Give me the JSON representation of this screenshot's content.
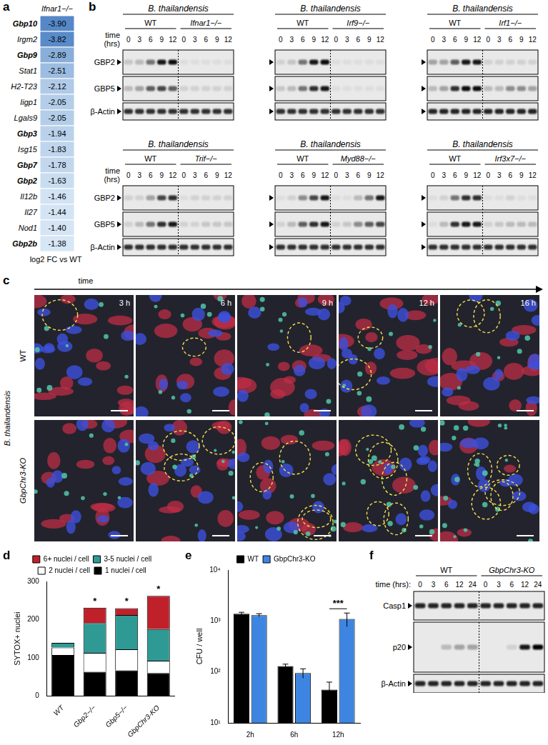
{
  "panel_a": {
    "letter": "a",
    "header": "Ifnar1−/−",
    "genes": [
      {
        "name": "Gbp10",
        "value": -3.9,
        "label": "-3.90",
        "bold": true
      },
      {
        "name": "Irgm2",
        "value": -3.82,
        "label": "-3.82",
        "bold": false
      },
      {
        "name": "Gbp9",
        "value": -2.89,
        "label": "-2.89",
        "bold": true
      },
      {
        "name": "Stat1",
        "value": -2.51,
        "label": "-2.51",
        "bold": false
      },
      {
        "name": "H2-T23",
        "value": -2.12,
        "label": "-2.12",
        "bold": false
      },
      {
        "name": "Iigp1",
        "value": -2.05,
        "label": "-2.05",
        "bold": false
      },
      {
        "name": "Lgals9",
        "value": -2.05,
        "label": "-2.05",
        "bold": false
      },
      {
        "name": "Gbp3",
        "value": -1.94,
        "label": "-1.94",
        "bold": true
      },
      {
        "name": "Isg15",
        "value": -1.83,
        "label": "-1.83",
        "bold": false
      },
      {
        "name": "Gbp7",
        "value": -1.78,
        "label": "-1.78",
        "bold": true
      },
      {
        "name": "Gbp2",
        "value": -1.63,
        "label": "-1.63",
        "bold": true
      },
      {
        "name": "Il12b",
        "value": -1.46,
        "label": "-1.46",
        "bold": false
      },
      {
        "name": "Il27",
        "value": -1.44,
        "label": "-1.44",
        "bold": false
      },
      {
        "name": "Nod1",
        "value": -1.4,
        "label": "-1.40",
        "bold": false
      },
      {
        "name": "Gbp2b",
        "value": -1.38,
        "label": "-1.38",
        "bold": true
      }
    ],
    "footer": "log2 FC vs WT"
  },
  "panel_b": {
    "letter": "b",
    "time_label": [
      "time",
      "(hrs)"
    ],
    "row_labels": [
      "GBP2",
      "GBP5",
      "β-Actin"
    ],
    "blots": [
      {
        "pathogen": "B. thailandensis",
        "groups": [
          "WT",
          "Ifnar1−/−"
        ],
        "times": [
          0,
          3,
          6,
          9,
          12
        ],
        "bands": [
          [
            0.15,
            0.2,
            0.5,
            0.9,
            0.95,
            0.05,
            0.05,
            0.05,
            0.05,
            0.05
          ],
          [
            0.2,
            0.3,
            0.6,
            0.7,
            0.6,
            0.1,
            0.1,
            0.1,
            0.1,
            0.1
          ],
          [
            0.8,
            0.8,
            0.8,
            0.8,
            0.8,
            0.8,
            0.8,
            0.8,
            0.8,
            0.8
          ]
        ]
      },
      {
        "pathogen": "B. thailandensis",
        "groups": [
          "WT",
          "Irf9−/−"
        ],
        "times": [
          0,
          3,
          6,
          9,
          12
        ],
        "bands": [
          [
            0.1,
            0.15,
            0.5,
            0.9,
            0.95,
            0.05,
            0.05,
            0.05,
            0.05,
            0.05
          ],
          [
            0.15,
            0.2,
            0.5,
            0.8,
            0.9,
            0.05,
            0.05,
            0.05,
            0.05,
            0.05
          ],
          [
            0.8,
            0.8,
            0.8,
            0.8,
            0.8,
            0.8,
            0.8,
            0.8,
            0.8,
            0.8
          ]
        ]
      },
      {
        "pathogen": "B. thailandensis",
        "groups": [
          "WT",
          "Irf1−/−"
        ],
        "times": [
          0,
          3,
          6,
          9,
          12
        ],
        "bands": [
          [
            0.3,
            0.3,
            0.6,
            0.9,
            0.9,
            0.1,
            0.1,
            0.1,
            0.1,
            0.1
          ],
          [
            0.2,
            0.3,
            0.8,
            0.95,
            0.95,
            0.2,
            0.2,
            0.4,
            0.4,
            0.3
          ],
          [
            0.85,
            0.85,
            0.85,
            0.85,
            0.85,
            0.85,
            0.85,
            0.85,
            0.85,
            0.85
          ]
        ]
      },
      {
        "pathogen": "B. thailandensis",
        "groups": [
          "WT",
          "Trif−/−"
        ],
        "times": [
          0,
          3,
          6,
          9,
          12
        ],
        "bands": [
          [
            0.1,
            0.1,
            0.3,
            0.7,
            0.8,
            0.05,
            0.1,
            0.1,
            0.1,
            0.1
          ],
          [
            0.1,
            0.2,
            0.5,
            0.8,
            0.9,
            0.1,
            0.1,
            0.15,
            0.15,
            0.15
          ],
          [
            0.8,
            0.8,
            0.8,
            0.8,
            0.8,
            0.8,
            0.8,
            0.8,
            0.8,
            0.8
          ]
        ]
      },
      {
        "pathogen": "B. thailandensis",
        "groups": [
          "WT",
          "Myd88−/−"
        ],
        "times": [
          0,
          3,
          6,
          9,
          12
        ],
        "bands": [
          [
            0.05,
            0.1,
            0.4,
            0.7,
            0.9,
            0.05,
            0.05,
            0.2,
            0.5,
            0.9
          ],
          [
            0.1,
            0.2,
            0.6,
            0.8,
            0.9,
            0.1,
            0.15,
            0.4,
            0.6,
            0.7
          ],
          [
            0.8,
            0.8,
            0.8,
            0.8,
            0.8,
            0.8,
            0.8,
            0.8,
            0.8,
            0.8
          ]
        ]
      },
      {
        "pathogen": "B. thailandensis",
        "groups": [
          "WT",
          "Irf3x7−/−"
        ],
        "times": [
          0,
          3,
          6,
          9,
          12
        ],
        "bands": [
          [
            0.05,
            0.1,
            0.5,
            0.8,
            0.8,
            0.05,
            0.05,
            0.1,
            0.05,
            0.05
          ],
          [
            0.05,
            0.2,
            0.8,
            0.9,
            0.9,
            0.1,
            0.15,
            0.2,
            0.2,
            0.2
          ],
          [
            0.8,
            0.8,
            0.8,
            0.8,
            0.8,
            0.8,
            0.8,
            0.8,
            0.8,
            0.8
          ]
        ]
      }
    ]
  },
  "panel_c": {
    "letter": "c",
    "time_label": "time",
    "pathogen": "B. thailandensis",
    "rows": [
      "WT",
      "GbpChr3-KO"
    ],
    "timepoints": [
      "3 h",
      "6 h",
      "9 h",
      "12 h",
      "16 h"
    ]
  },
  "chart_data": [
    {
      "letter": "d",
      "type": "bar",
      "stacked": true,
      "categories": [
        "WT",
        "Gbp2−/−",
        "Gbp5−/−",
        "GbpChr3-KO"
      ],
      "series": [
        {
          "name": "1 nuclei / cell",
          "color": "#000000",
          "values": [
            107,
            63,
            67,
            60
          ]
        },
        {
          "name": "2 nuclei / cell",
          "color": "#ffffff",
          "values": [
            20,
            50,
            55,
            32
          ]
        },
        {
          "name": "3-5 nuclei / cell",
          "color": "#2f9a94",
          "values": [
            12,
            78,
            90,
            83
          ]
        },
        {
          "name": "6+ nuclei / cell",
          "color": "#c0202a",
          "values": [
            0,
            40,
            18,
            87
          ]
        }
      ],
      "ylabel": "SYTOX+ nuclei",
      "ylim": [
        0,
        300
      ],
      "yticks": [
        0,
        100,
        200,
        300
      ],
      "legend": "top",
      "grid": false,
      "annotations": [
        null,
        "*",
        "*",
        "*"
      ]
    },
    {
      "letter": "e",
      "type": "bar",
      "log": "y",
      "categories": [
        "2h",
        "6h",
        "12h"
      ],
      "series": [
        {
          "name": "WT",
          "color": "#000000",
          "values": [
            1380,
            130,
            45
          ],
          "errors": [
            100,
            12,
            18
          ]
        },
        {
          "name": "GbpChr3-KO",
          "color": "#3d85e0",
          "values": [
            1300,
            95,
            1100
          ],
          "errors": [
            90,
            20,
            330
          ]
        }
      ],
      "ylabel": "CFU / well",
      "ylim": [
        10,
        10000
      ],
      "yticks": [
        {
          "value": 10,
          "label": "10¹"
        },
        {
          "value": 100,
          "label": "10²"
        },
        {
          "value": 1000,
          "label": "10³"
        },
        {
          "value": 10000,
          "label": "10⁴"
        }
      ],
      "legend": "top",
      "grid": false,
      "annotations": [
        {
          "category": "12h",
          "label": "***"
        }
      ]
    }
  ],
  "panel_f": {
    "letter": "f",
    "groups": [
      "WT",
      "GbpChr3-KO"
    ],
    "time_label": [
      "time (hrs):"
    ],
    "times": [
      0,
      3,
      6,
      12,
      24
    ],
    "row_labels": [
      "Casp1",
      "p20",
      "β-Actin"
    ],
    "bands": [
      [
        0.85,
        0.85,
        0.85,
        0.85,
        0.85,
        0.85,
        0.85,
        0.85,
        0.85,
        0.85
      ],
      [
        0.0,
        0.0,
        0.2,
        0.3,
        0.3,
        0.0,
        0.0,
        0.1,
        0.9,
        1.0
      ],
      [
        0.85,
        0.85,
        0.85,
        0.85,
        0.85,
        0.85,
        0.85,
        0.85,
        0.85,
        0.85
      ]
    ]
  }
}
